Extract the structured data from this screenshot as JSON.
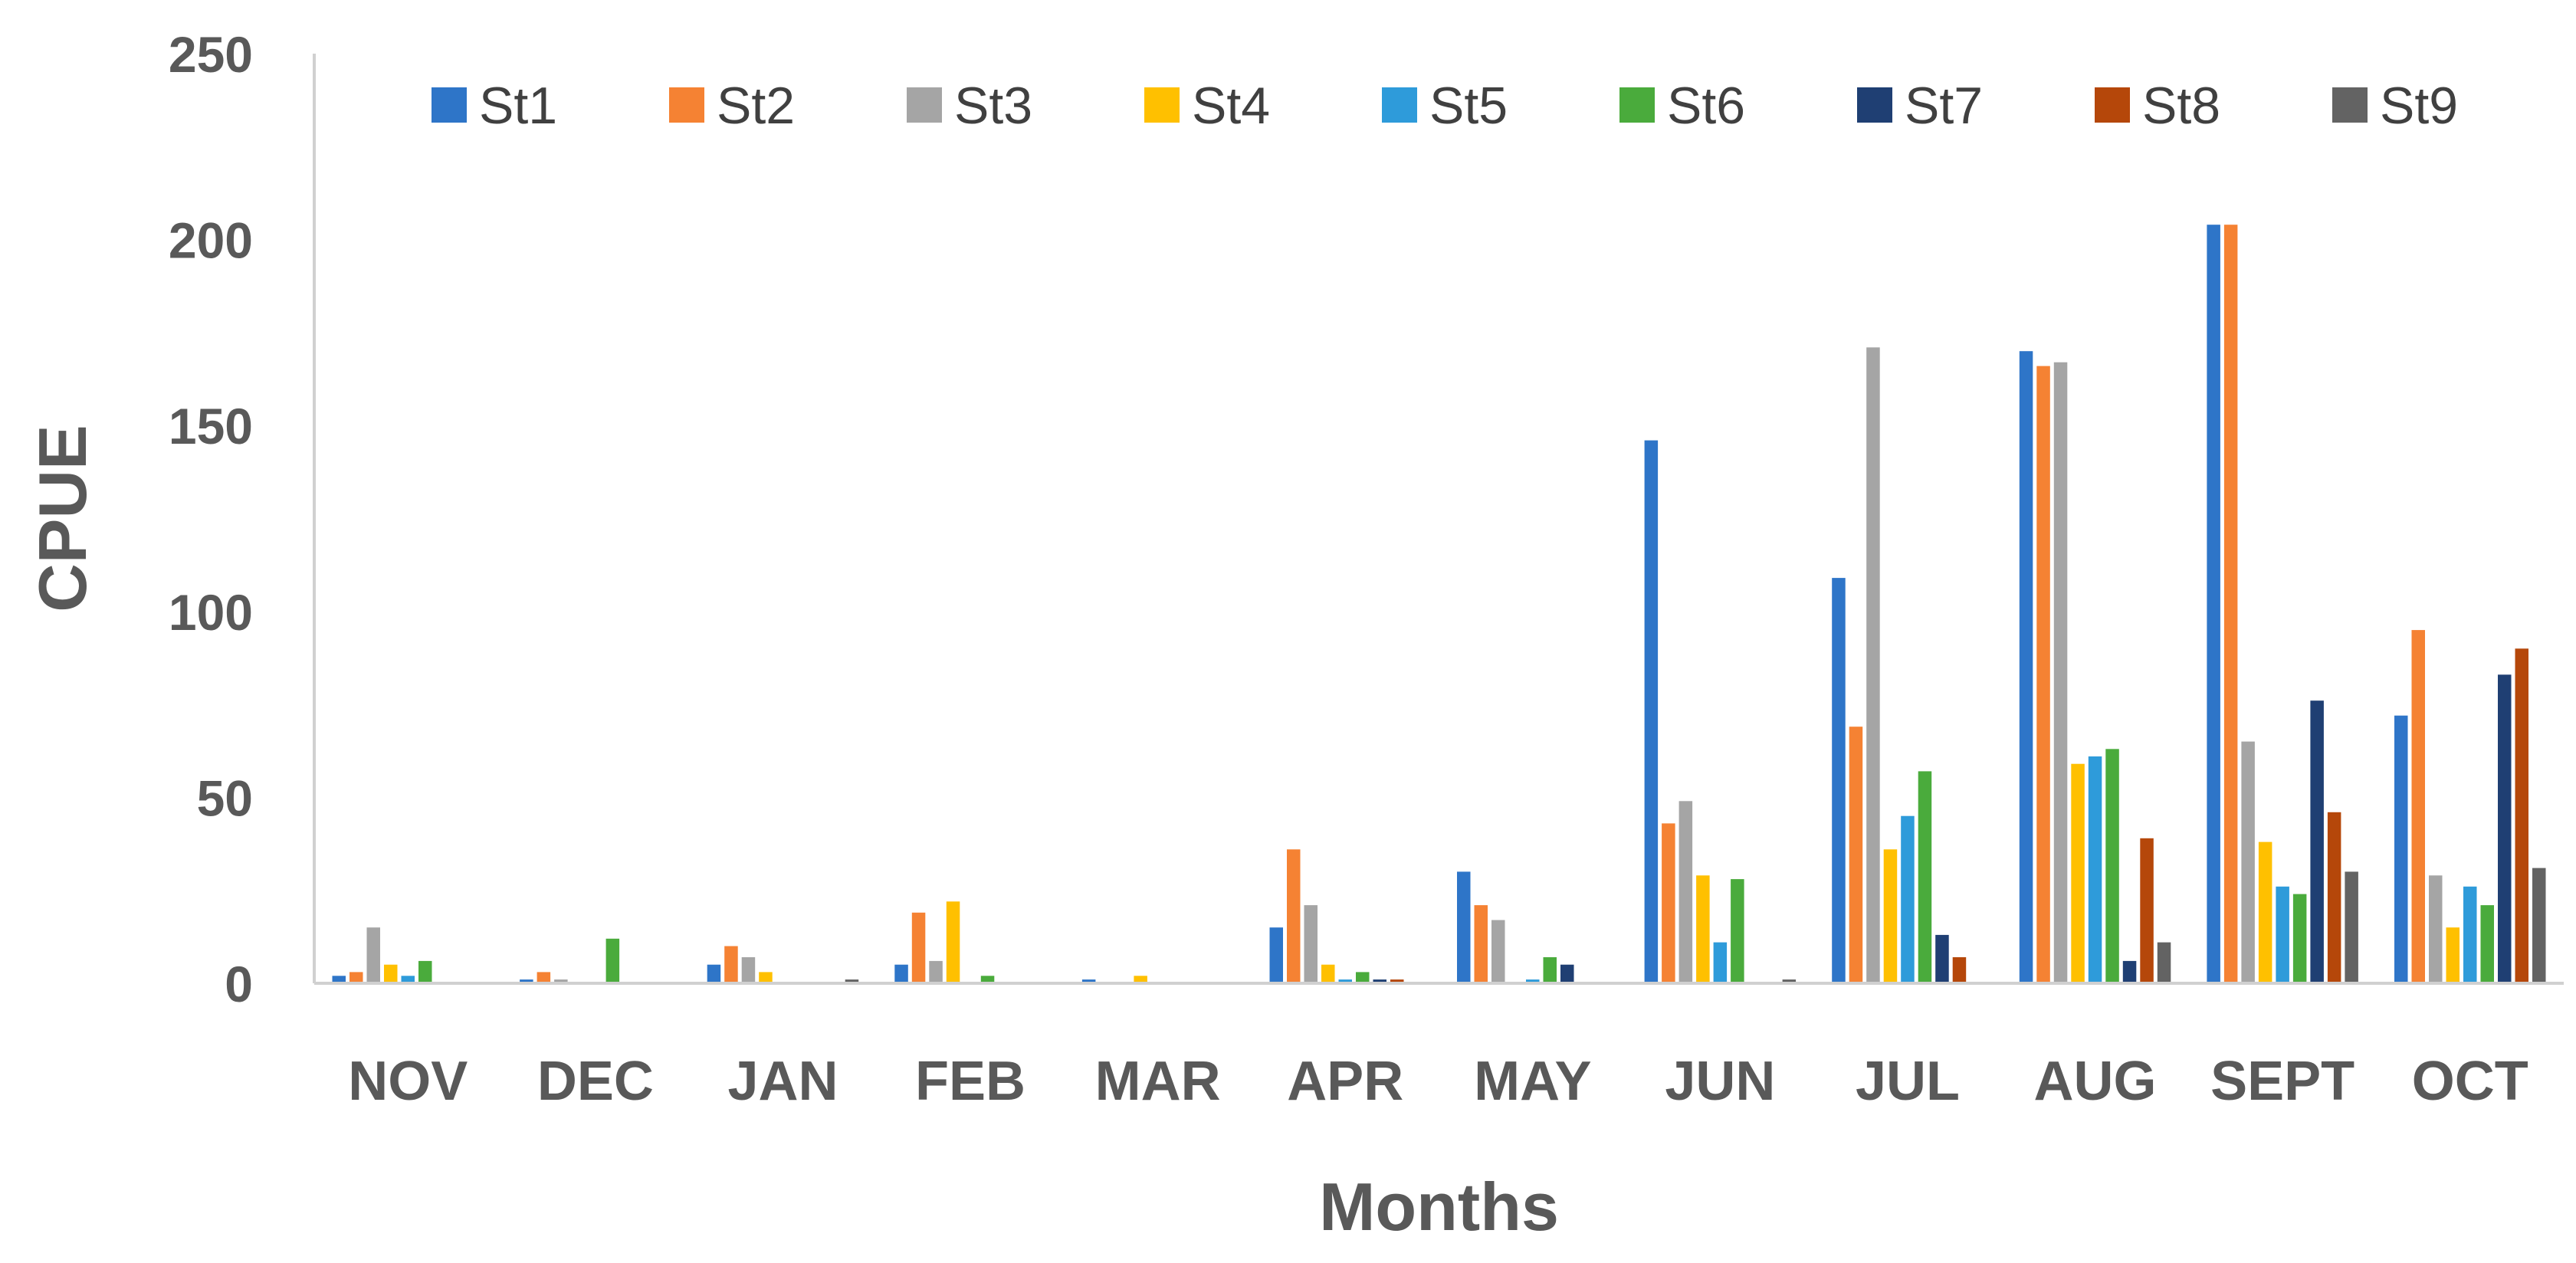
{
  "chart_data": {
    "type": "bar",
    "title": "",
    "xlabel": "Months",
    "ylabel": "CPUE",
    "ylim": [
      0,
      250
    ],
    "yticks": [
      0,
      50,
      100,
      150,
      200,
      250
    ],
    "grid": false,
    "legend_position": "top",
    "categories": [
      "NOV",
      "DEC",
      "JAN",
      "FEB",
      "MAR",
      "APR",
      "MAY",
      "JUN",
      "JUL",
      "AUG",
      "SEPT",
      "OCT"
    ],
    "series": [
      {
        "name": "St1",
        "color": "#2E75C8",
        "values": [
          2,
          1,
          5,
          5,
          1,
          15,
          30,
          146,
          109,
          170,
          204,
          72
        ]
      },
      {
        "name": "St2",
        "color": "#F58233",
        "values": [
          3,
          3,
          10,
          19,
          0,
          36,
          21,
          43,
          69,
          166,
          204,
          95
        ]
      },
      {
        "name": "St3",
        "color": "#A5A5A5",
        "values": [
          15,
          1,
          7,
          6,
          0,
          21,
          17,
          49,
          171,
          167,
          65,
          29
        ]
      },
      {
        "name": "St4",
        "color": "#FFC000",
        "values": [
          5,
          0,
          3,
          22,
          2,
          5,
          0,
          29,
          36,
          59,
          38,
          15
        ]
      },
      {
        "name": "St5",
        "color": "#2E9BDA",
        "values": [
          2,
          0,
          0,
          0,
          0,
          1,
          1,
          11,
          45,
          61,
          26,
          26
        ]
      },
      {
        "name": "St6",
        "color": "#4AAB3C",
        "values": [
          6,
          12,
          0,
          2,
          0,
          3,
          7,
          28,
          57,
          63,
          24,
          21
        ]
      },
      {
        "name": "St7",
        "color": "#1F3F73",
        "values": [
          0,
          0,
          0,
          0,
          0,
          1,
          5,
          0,
          13,
          6,
          76,
          83
        ]
      },
      {
        "name": "St8",
        "color": "#B5470A",
        "values": [
          0,
          0,
          0,
          0,
          0,
          1,
          0,
          0,
          7,
          39,
          46,
          90
        ]
      },
      {
        "name": "St9",
        "color": "#636363",
        "values": [
          0,
          0,
          1,
          0,
          0,
          0,
          0,
          1,
          0,
          11,
          30,
          31
        ]
      }
    ]
  }
}
